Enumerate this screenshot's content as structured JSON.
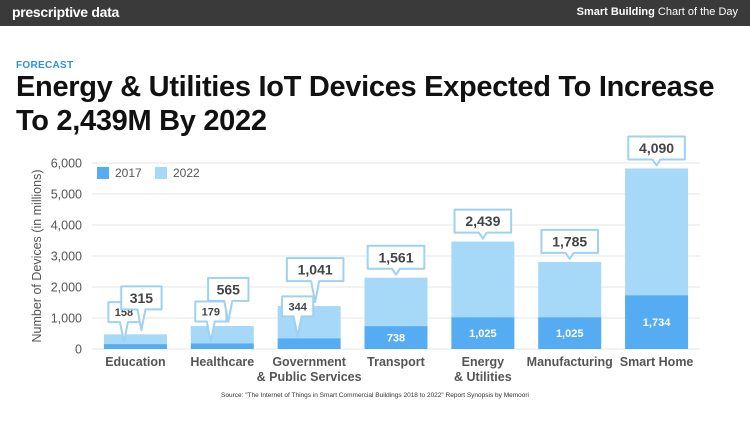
{
  "header": {
    "brand": "prescriptive data",
    "tagline_bold": "Smart Building",
    "tagline_rest": "Chart of the Day"
  },
  "kicker": "FORECAST",
  "title": "Energy & Utilities IoT Devices Expected To Increase To 2,439M By 2022",
  "source": "Source: \"The Internet of Things in Smart Commercial Buildings 2018 to 2022\" Report Synopsis by Memoori",
  "colors": {
    "series_2017": "#55acf2",
    "series_2022": "#a6d8f8",
    "callout_border": "#9fd2f0",
    "grid": "#e6e6e6",
    "axis_text": "#555555"
  },
  "chart_data": {
    "type": "bar",
    "stacked": true,
    "categories": [
      [
        "Education"
      ],
      [
        "Healthcare"
      ],
      [
        "Government",
        "& Public Services"
      ],
      [
        "Transport"
      ],
      [
        "Energy",
        "& Utilities"
      ],
      [
        "Manufacturing"
      ],
      [
        "Smart Home"
      ]
    ],
    "series": [
      {
        "name": "2017",
        "values": [
          158,
          179,
          344,
          738,
          1025,
          1025,
          1734
        ]
      },
      {
        "name": "2022",
        "values": [
          315,
          565,
          1041,
          1561,
          2439,
          1785,
          4090
        ]
      }
    ],
    "labels_2017": [
      "158",
      "179",
      "344",
      "738",
      "1,025",
      "1,025",
      "1,734"
    ],
    "labels_2022": [
      "315",
      "565",
      "1,041",
      "1,561",
      "2,439",
      "1,785",
      "4,090"
    ],
    "ylabel": "Number of Devices (in millions)",
    "yticks": [
      "0",
      "1,000",
      "2,000",
      "3,000",
      "4,000",
      "5,000",
      "6,000"
    ],
    "ylim": [
      0,
      6000
    ],
    "grid": true,
    "legend_position": "top-left"
  }
}
